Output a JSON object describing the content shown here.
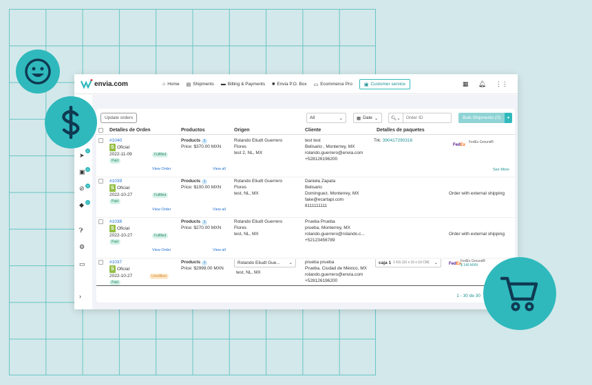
{
  "app": {
    "logo_text": "envia.com"
  },
  "nav": [
    {
      "label": "Home",
      "icon": "home-icon"
    },
    {
      "label": "Shipments",
      "icon": "document-icon"
    },
    {
      "label": "Billing & Payments",
      "icon": "card-icon"
    },
    {
      "label": "Envia P.O. Box",
      "icon": "truck-icon"
    },
    {
      "label": "Ecommerce Pro",
      "icon": "store-icon"
    }
  ],
  "customer_service": "Customer service",
  "toolbar": {
    "update_orders": "Update orders",
    "filter_all": "All",
    "date_label": "Date",
    "order_id_placeholder": "Order ID",
    "bulk_shipments": "Bulk Shipments (0)"
  },
  "columns": [
    "Detalles de Orden",
    "Productos",
    "Origen",
    "Cliente",
    "Detalles de paquetes"
  ],
  "orders": [
    {
      "id": "#1040",
      "store": "Oficial",
      "date": "2022-11-09",
      "status": "Fulfilled",
      "payment": "Paid",
      "view_order": "View Order",
      "products_label": "Products",
      "products_count": "2",
      "price": "Price: $370.00 MXN",
      "view_all": "View all",
      "origin_name_1": "Rolando Eliudt Guerrero",
      "origin_name_2": "Flores",
      "origin_place": "test 2, NL, MX",
      "client_name": "test test",
      "client_line2": "Belisario , Monterrey, MX",
      "client_email": "rolando.guerrero@envia.com",
      "client_phone": "+528126196200",
      "tracking_label": "Trk:",
      "tracking": "390417290316",
      "carrier_service": "FedEx Ground®",
      "see_more": "See More"
    },
    {
      "id": "#1039",
      "store": "Oficial",
      "date": "2022-10-27",
      "status": "Fulfilled",
      "payment": "Paid",
      "view_order": "View Order",
      "products_label": "Products",
      "products_count": "1",
      "price": "Price: $100.00 MXN",
      "view_all": "View all",
      "origin_name_1": "Rolando Eliudt Guerrero",
      "origin_name_2": "Flores",
      "origin_place": "test, NL, MX",
      "client_name": "Daniela Zapata",
      "client_line2": "Belisario",
      "client_line3": "Dominguez, Monterrey, MX",
      "client_email": "fake@ecartapi.com",
      "client_phone": "8111111111",
      "shipping_note": "Order with external shipping"
    },
    {
      "id": "#1038",
      "store": "Oficial",
      "date": "2022-10-27",
      "status": "Fulfilled",
      "payment": "Paid",
      "view_order": "View Order",
      "products_label": "Products",
      "products_count": "1",
      "price": "Price: $270.00 MXN",
      "view_all": "View all",
      "origin_name_1": "Rolando Eliudt Guerrero",
      "origin_name_2": "Flores",
      "origin_place": "test, NL, MX",
      "client_name": "Prueba Prueba",
      "client_line2": "prueba, Monterrey, MX",
      "client_email": "rolando.guerrero@rolando.c...",
      "client_phone": "+52123456789",
      "shipping_note": "Order with external shipping"
    },
    {
      "id": "#1037",
      "store": "Oficial",
      "date": "2022-10-27",
      "status": "Unfulfilled",
      "payment": "Paid",
      "products_label": "Products",
      "products_count": "1",
      "price": "Price: $2999.00 MXN",
      "origin_select": "Rolando Eliudt Gue...",
      "origin_place": "test, NL, MX",
      "client_name": "prueba prueba",
      "client_line2": "Prueba, Ciudad de México, MX",
      "client_email": "rolando.guerrero@envia.com",
      "client_phone": "+528126196200",
      "package_name": "caja 1",
      "package_dims": "1 KG (10 x 10 x 10 CM)",
      "carrier_service": "FedEx Ground®",
      "carrier_price": "$ 140 MXN"
    }
  ],
  "pagination": "1 - 30 de 30",
  "sidebar_badges": [
    "0",
    "0",
    "0",
    "0"
  ],
  "colors": {
    "accent": "#2fb9bd",
    "background": "#d3e8ea",
    "link": "#1f6fd1"
  }
}
